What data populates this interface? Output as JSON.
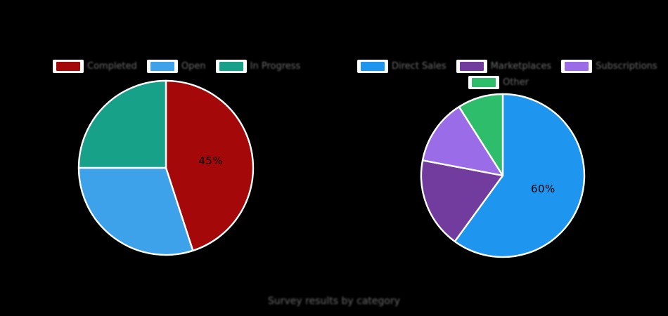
{
  "colors": {
    "background": "#000000",
    "muted_text": "#6a6a6a",
    "value_label_text": "#000000",
    "wedge_edge": "#ffffff",
    "legend_chip_background": "#ffffff"
  },
  "caption": "Survey results by category",
  "chart_data": [
    {
      "type": "pie",
      "labels": [
        "Completed",
        "Open",
        "In Progress"
      ],
      "values": [
        45,
        30,
        25
      ],
      "colors": [
        "#a40808",
        "#3da2ea",
        "#18a189"
      ],
      "start_angle": 90,
      "direction": "clockwise",
      "legend_position": "top",
      "shown_value_label": {
        "text": "45%",
        "slice_index": 0
      }
    },
    {
      "type": "pie",
      "labels": [
        "Direct Sales",
        "Marketplaces",
        "Subscriptions",
        "Other"
      ],
      "values": [
        60,
        18,
        13,
        9
      ],
      "colors": [
        "#1e96f0",
        "#713c9e",
        "#9b6ce8",
        "#2dbd6b"
      ],
      "start_angle": 90,
      "direction": "clockwise",
      "legend_position": "top",
      "shown_value_label": {
        "text": "60%",
        "slice_index": 0
      }
    }
  ]
}
